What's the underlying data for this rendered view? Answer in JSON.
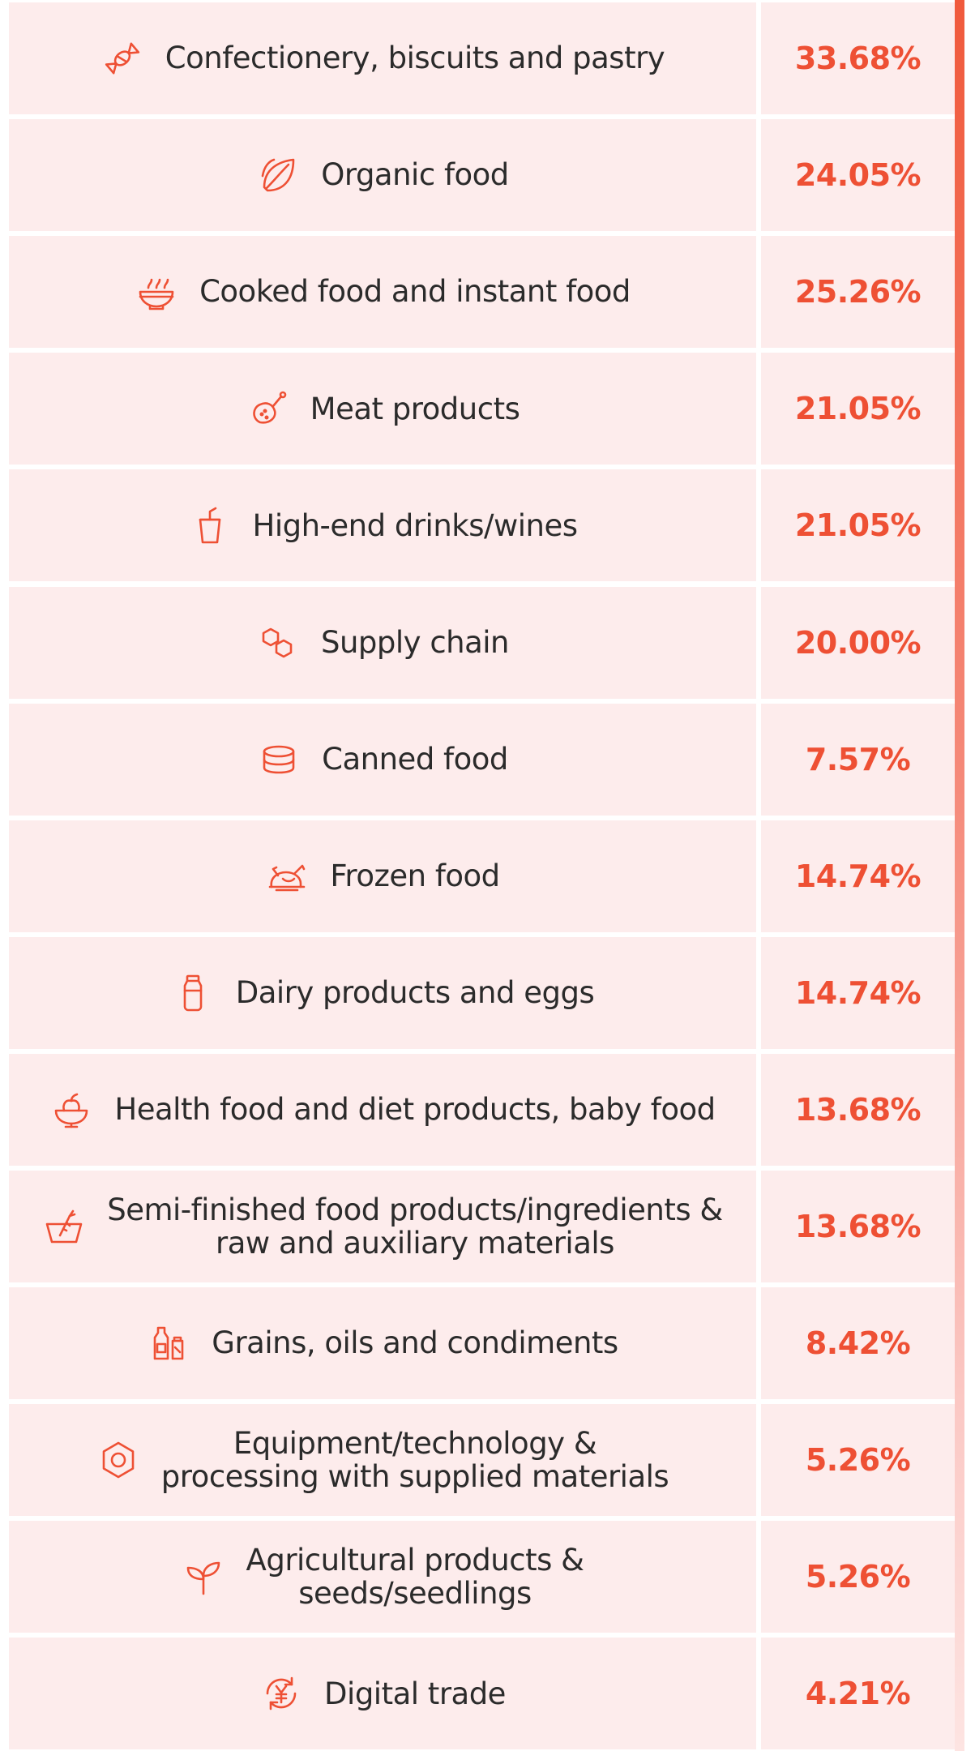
{
  "colors": {
    "accent": "#ee5034",
    "row_bg": "#fdecec",
    "text": "#2b2b2b"
  },
  "chart_data": {
    "type": "table",
    "rows": [
      {
        "category": "Confectionery, biscuits and pastry",
        "value": "33.68%",
        "icon": "candy-icon"
      },
      {
        "category": "Organic food",
        "value": "24.05%",
        "icon": "leaf-icon"
      },
      {
        "category": "Cooked food and instant food",
        "value": "25.26%",
        "icon": "noodle-bowl-icon"
      },
      {
        "category": "Meat products",
        "value": "21.05%",
        "icon": "chicken-leg-icon"
      },
      {
        "category": "High-end drinks/wines",
        "value": "21.05%",
        "icon": "drink-cup-icon"
      },
      {
        "category": "Supply chain",
        "value": "20.00%",
        "icon": "linked-hexagons-icon"
      },
      {
        "category": "Canned food",
        "value": "7.57%",
        "icon": "can-icon"
      },
      {
        "category": "Frozen food",
        "value": "14.74%",
        "icon": "roast-chicken-icon"
      },
      {
        "category": "Dairy products and eggs",
        "value": "14.74%",
        "icon": "milk-bottle-icon"
      },
      {
        "category": "Health food and diet products, baby food",
        "value": "13.68%",
        "icon": "apple-bowl-icon"
      },
      {
        "category": "Semi-finished food products/ingredients &\nraw and auxiliary materials",
        "value": "13.68%",
        "icon": "carrot-basket-icon"
      },
      {
        "category": "Grains, oils and condiments",
        "value": "8.42%",
        "icon": "condiment-bottles-icon"
      },
      {
        "category": "Equipment/technology &\nprocessing with supplied materials",
        "value": "5.26%",
        "icon": "hex-nut-icon"
      },
      {
        "category": "Agricultural products &\nseeds/seedlings",
        "value": "5.26%",
        "icon": "sprout-icon"
      },
      {
        "category": "Digital trade",
        "value": "4.21%",
        "icon": "yuan-cycle-icon"
      }
    ]
  }
}
